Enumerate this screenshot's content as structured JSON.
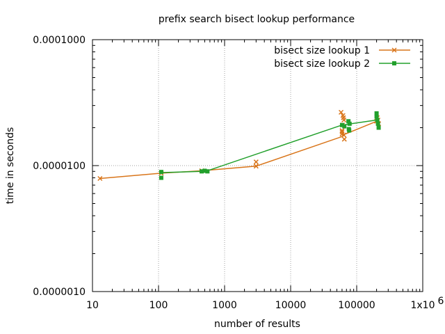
{
  "chart_data": {
    "type": "line",
    "title": "prefix search bisect lookup performance",
    "xlabel": "number of results",
    "ylabel": "time in seconds",
    "xscale": "log",
    "yscale": "log",
    "xlim": [
      10,
      1000000
    ],
    "ylim": [
      1e-06,
      0.0001
    ],
    "x_ticks": [
      {
        "value": 10,
        "label": "10"
      },
      {
        "value": 100,
        "label": "100"
      },
      {
        "value": 1000,
        "label": "1000"
      },
      {
        "value": 10000,
        "label": "10000"
      },
      {
        "value": 100000,
        "label": "100000"
      },
      {
        "value": 1000000,
        "label": "1x10",
        "sup": "6"
      }
    ],
    "y_ticks": [
      {
        "value": 1e-06,
        "label": "0.0000010"
      },
      {
        "value": 1e-05,
        "label": "0.0000100"
      },
      {
        "value": 0.0001,
        "label": "0.0001000"
      }
    ],
    "grid": true,
    "legend_position": "top-right",
    "series": [
      {
        "name": "bisect size lookup 1",
        "color": "#d9751a",
        "marker": "x",
        "line_points": [
          [
            13,
            7.9e-06
          ],
          [
            110,
            8.7e-06
          ],
          [
            450,
            9.1e-06
          ],
          [
            3000,
            9.9e-06
          ],
          [
            60000,
            1.7e-05
          ],
          [
            62000,
            1.75e-05
          ],
          [
            200000,
            2.25e-05
          ]
        ],
        "points": [
          [
            13,
            7.9e-06
          ],
          [
            110,
            8.7e-06
          ],
          [
            450,
            9.1e-06
          ],
          [
            3000,
            9.9e-06
          ],
          [
            3000,
            1.07e-05
          ],
          [
            58000,
            2.65e-05
          ],
          [
            60000,
            1.85e-05
          ],
          [
            60000,
            1.78e-05
          ],
          [
            60000,
            1.9e-05
          ],
          [
            61000,
            2.1e-05
          ],
          [
            62000,
            2.5e-05
          ],
          [
            63000,
            2.4e-05
          ],
          [
            64000,
            2.3e-05
          ],
          [
            64000,
            1.75e-05
          ],
          [
            65000,
            1.62e-05
          ],
          [
            200000,
            2.25e-05
          ],
          [
            205000,
            2.4e-05
          ],
          [
            210000,
            2.3e-05
          ],
          [
            215000,
            2.15e-05
          ]
        ]
      },
      {
        "name": "bisect size lookup 2",
        "color": "#22a02c",
        "marker": "square",
        "line_points": [
          [
            110,
            8.8e-06
          ],
          [
            450,
            9e-06
          ],
          [
            550,
            9.1e-06
          ],
          [
            60000,
            2.1e-05
          ],
          [
            200000,
            2.3e-05
          ]
        ],
        "points": [
          [
            110,
            8.9e-06
          ],
          [
            110,
            8e-06
          ],
          [
            450,
            9e-06
          ],
          [
            500,
            9.1e-06
          ],
          [
            550,
            9e-06
          ],
          [
            60000,
            2.1e-05
          ],
          [
            65000,
            2.05e-05
          ],
          [
            75000,
            2.25e-05
          ],
          [
            76000,
            1.95e-05
          ],
          [
            77000,
            1.9e-05
          ],
          [
            78000,
            2.15e-05
          ],
          [
            200000,
            2.6e-05
          ],
          [
            200000,
            2.45e-05
          ],
          [
            205000,
            2.3e-05
          ],
          [
            210000,
            2.15e-05
          ],
          [
            215000,
            2e-05
          ]
        ]
      }
    ]
  }
}
